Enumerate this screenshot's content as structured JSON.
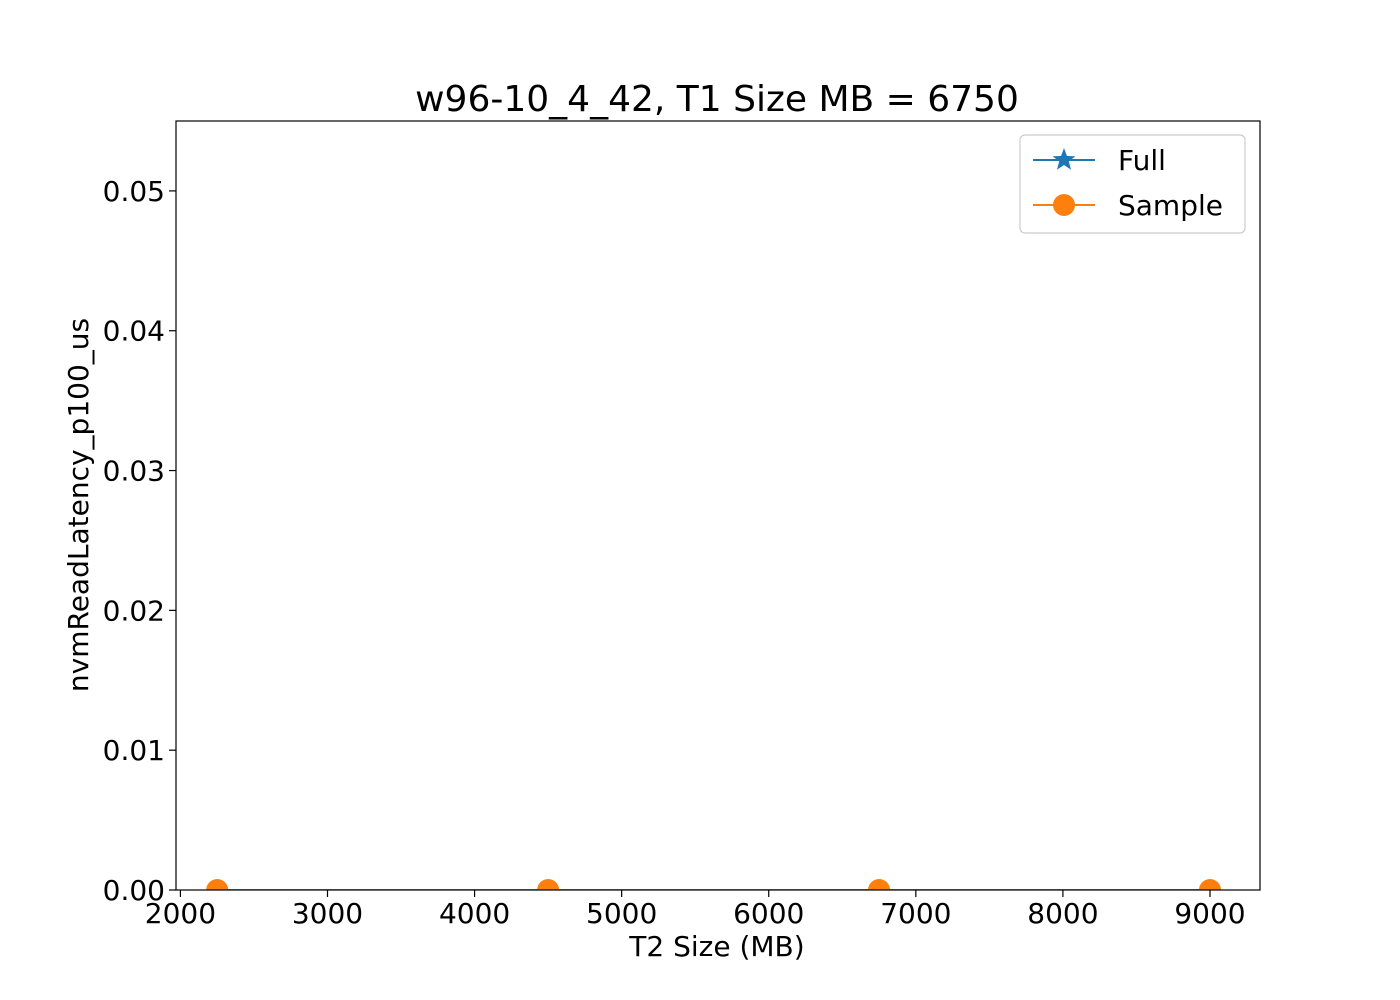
{
  "chart_data": {
    "type": "line",
    "title": "w96-10_4_42, T1 Size MB = 6750",
    "xlabel": "T2 Size (MB)",
    "ylabel": "nvmReadLatency_p100_us",
    "xlim": [
      1970,
      9340
    ],
    "ylim": [
      0,
      0.055
    ],
    "xticks": [
      2000,
      3000,
      4000,
      5000,
      6000,
      7000,
      8000,
      9000
    ],
    "xtick_labels": [
      "2000",
      "3000",
      "4000",
      "5000",
      "6000",
      "7000",
      "8000",
      "9000"
    ],
    "yticks": [
      0.0,
      0.01,
      0.02,
      0.03,
      0.04,
      0.05
    ],
    "ytick_labels": [
      "0.00",
      "0.01",
      "0.02",
      "0.03",
      "0.04",
      "0.05"
    ],
    "grid": false,
    "legend_position": "top-right",
    "series": [
      {
        "name": "Full",
        "color": "#1f77b4",
        "marker": "star",
        "x": [],
        "y": []
      },
      {
        "name": "Sample",
        "color": "#ff7f0e",
        "marker": "circle",
        "x": [
          2250,
          4500,
          6750,
          9000
        ],
        "y": [
          0.0,
          0.0,
          0.0,
          0.0
        ]
      }
    ]
  }
}
